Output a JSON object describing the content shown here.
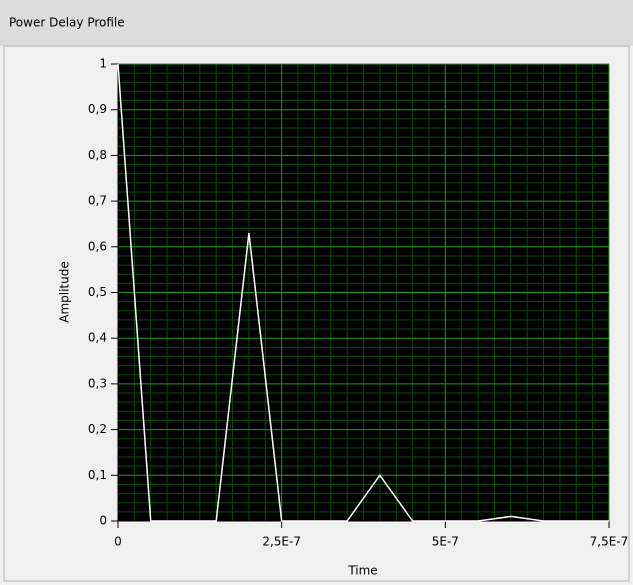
{
  "chart_data": {
    "type": "line",
    "title": "Power Delay Profile",
    "x_label": "Time",
    "y_label": "Amplitude",
    "x": [
      0,
      5e-08,
      1e-07,
      1.5e-07,
      2e-07,
      2.5e-07,
      3e-07,
      3.5e-07,
      4e-07,
      4.5e-07,
      5e-07,
      5.5e-07,
      6e-07,
      6.5e-07,
      7e-07,
      7.5e-07
    ],
    "series": [
      {
        "name": "Amplitude",
        "color": "#ffffff",
        "values": [
          1,
          0,
          0,
          0,
          0.63,
          0,
          0,
          0,
          0.1,
          0,
          0,
          0,
          0.01,
          0,
          0,
          0
        ]
      }
    ],
    "xlim": [
      0,
      7.5e-07
    ],
    "xticks": [
      0,
      {
        "value": 2.5e-07,
        "label": "2,5E-7"
      },
      {
        "value": 5e-07,
        "label": "5E-7"
      },
      {
        "value": 7.5e-07,
        "label": "7,5E-7"
      }
    ],
    "ylim": [
      0,
      1
    ],
    "yticks": [
      0,
      {
        "value": 0.1,
        "label": "0,1"
      },
      {
        "value": 0.2,
        "label": "0,2"
      },
      {
        "value": 0.3,
        "label": "0,3"
      },
      {
        "value": 0.4,
        "label": "0,4"
      },
      {
        "value": 0.5,
        "label": "0,5"
      },
      {
        "value": 0.6,
        "label": "0,6"
      },
      {
        "value": 0.7,
        "label": "0,7"
      },
      {
        "value": 0.8,
        "label": "0,8"
      },
      {
        "value": 0.9,
        "label": "0,9"
      },
      1
    ],
    "grid": true,
    "background": "#000000",
    "grid_color": "#1f9a1f",
    "minor_grid_color": "#0c4a0c"
  }
}
